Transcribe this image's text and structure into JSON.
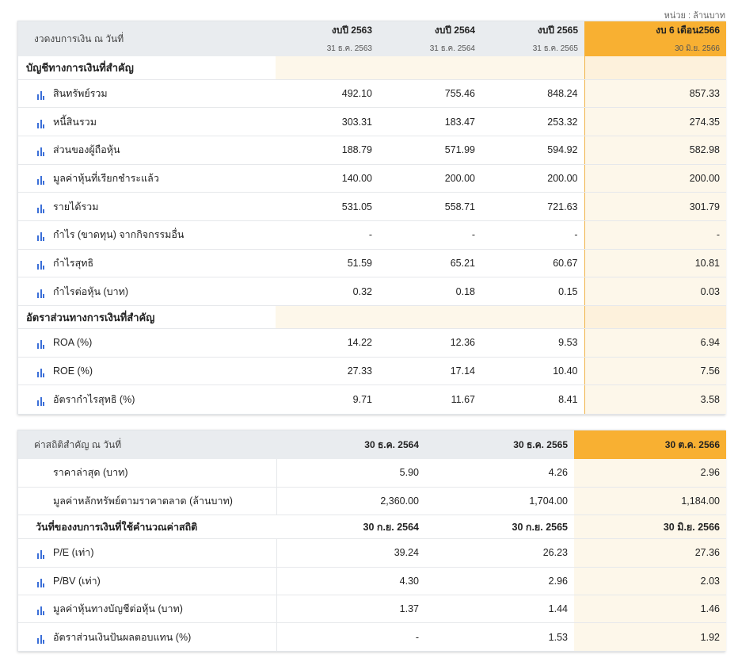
{
  "unit_note": "หน่วย : ล้านบาท",
  "colors": {
    "highlight_header": "#f8b032",
    "highlight_cell": "#fdf7ea",
    "icon": "#3b6fd8",
    "header_bg": "#e9ecef"
  },
  "financials": {
    "header_label": "งวดงบการเงิน ณ วันที่",
    "periods": [
      {
        "title": "งบปี 2563",
        "date": "31 ธ.ค. 2563"
      },
      {
        "title": "งบปี 2564",
        "date": "31 ธ.ค. 2564"
      },
      {
        "title": "งบปี 2565",
        "date": "31 ธ.ค. 2565"
      },
      {
        "title": "งบ 6 เดือน2566",
        "date": "30 มิ.ย. 2566"
      }
    ],
    "section1_title": "บัญชีทางการเงินที่สำคัญ",
    "section1_rows": [
      {
        "label": "สินทรัพย์รวม",
        "values": [
          "492.10",
          "755.46",
          "848.24",
          "857.33"
        ]
      },
      {
        "label": "หนี้สินรวม",
        "values": [
          "303.31",
          "183.47",
          "253.32",
          "274.35"
        ]
      },
      {
        "label": "ส่วนของผู้ถือหุ้น",
        "values": [
          "188.79",
          "571.99",
          "594.92",
          "582.98"
        ]
      },
      {
        "label": "มูลค่าหุ้นที่เรียกชำระแล้ว",
        "values": [
          "140.00",
          "200.00",
          "200.00",
          "200.00"
        ]
      },
      {
        "label": "รายได้รวม",
        "values": [
          "531.05",
          "558.71",
          "721.63",
          "301.79"
        ]
      },
      {
        "label": "กำไร (ขาดทุน) จากกิจกรรมอื่น",
        "values": [
          "-",
          "-",
          "-",
          "-"
        ]
      },
      {
        "label": "กำไรสุทธิ",
        "values": [
          "51.59",
          "65.21",
          "60.67",
          "10.81"
        ]
      },
      {
        "label": "กำไรต่อหุ้น (บาท)",
        "values": [
          "0.32",
          "0.18",
          "0.15",
          "0.03"
        ]
      }
    ],
    "section2_title": "อัตราส่วนทางการเงินที่สำคัญ",
    "section2_rows": [
      {
        "label": "ROA (%)",
        "values": [
          "14.22",
          "12.36",
          "9.53",
          "6.94"
        ]
      },
      {
        "label": "ROE (%)",
        "values": [
          "27.33",
          "17.14",
          "10.40",
          "7.56"
        ]
      },
      {
        "label": "อัตรากำไรสุทธิ (%)",
        "values": [
          "9.71",
          "11.67",
          "8.41",
          "3.58"
        ]
      }
    ]
  },
  "statistics": {
    "header_label": "ค่าสถิติสำคัญ ณ วันที่",
    "dates": [
      "30 ธ.ค. 2564",
      "30 ธ.ค. 2565",
      "30 ต.ค. 2566"
    ],
    "top_rows": [
      {
        "label": "ราคาล่าสุด (บาท)",
        "values": [
          "5.90",
          "4.26",
          "2.96"
        ]
      },
      {
        "label": "มูลค่าหลักทรัพย์ตามราคาตลาด (ล้านบาท)",
        "values": [
          "2,360.00",
          "1,704.00",
          "1,184.00"
        ]
      }
    ],
    "section_label": "วันที่ของงบการเงินที่ใช้คำนวณค่าสถิติ",
    "section_dates": [
      "30 ก.ย. 2564",
      "30 ก.ย. 2565",
      "30 มิ.ย. 2566"
    ],
    "rows": [
      {
        "label": "P/E (เท่า)",
        "values": [
          "39.24",
          "26.23",
          "27.36"
        ]
      },
      {
        "label": "P/BV (เท่า)",
        "values": [
          "4.30",
          "2.96",
          "2.03"
        ]
      },
      {
        "label": "มูลค่าหุ้นทางบัญชีต่อหุ้น (บาท)",
        "values": [
          "1.37",
          "1.44",
          "1.46"
        ]
      },
      {
        "label": "อัตราส่วนเงินปันผลตอบแทน (%)",
        "values": [
          "-",
          "1.53",
          "1.92"
        ]
      }
    ]
  }
}
